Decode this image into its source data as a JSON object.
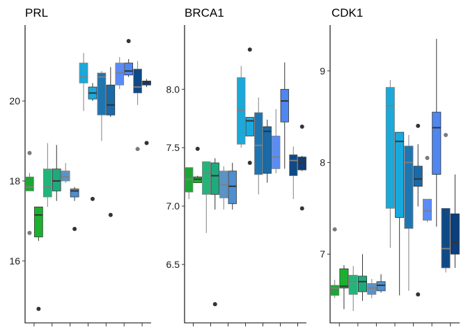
{
  "chart_data": [
    {
      "type": "box",
      "title": "PRL",
      "ylim": [
        14.45,
        21.9
      ],
      "yticks": [
        16,
        18,
        20
      ],
      "ytick_labels": [
        "16",
        "18",
        "20"
      ],
      "boxes": [
        {
          "q1": 17.75,
          "median": 17.85,
          "q3": 18.1,
          "whisker_low": 17.75,
          "whisker_high": 18.2,
          "outliers": [
            18.7,
            16.7
          ],
          "fill": "#1aa832",
          "median_color": "#7f7f7f"
        },
        {
          "q1": 16.6,
          "median": 17.15,
          "q3": 17.35,
          "whisker_low": 16.5,
          "whisker_high": 17.35,
          "outliers": [
            14.8
          ],
          "fill": "#1bb12f",
          "median_color": "#333333"
        },
        {
          "q1": 17.6,
          "median": 17.85,
          "q3": 18.3,
          "whisker_low": 17.35,
          "whisker_high": 18.95,
          "outliers": [],
          "fill": "#22b57a",
          "median_color": "#7f7f7f"
        },
        {
          "q1": 17.75,
          "median": 18.0,
          "q3": 18.3,
          "whisker_low": 17.5,
          "whisker_high": 18.9,
          "outliers": [],
          "fill": "#1fa97e",
          "median_color": "#333333"
        },
        {
          "q1": 18.0,
          "median": 18.1,
          "q3": 18.25,
          "whisker_low": 17.95,
          "whisker_high": 18.45,
          "outliers": [],
          "fill": "#5a94c6",
          "median_color": "#7f7f7f"
        },
        {
          "q1": 17.6,
          "median": 17.75,
          "q3": 17.8,
          "whisker_low": 17.5,
          "whisker_high": 17.85,
          "outliers": [
            16.8
          ],
          "fill": "#4d8fd0",
          "median_color": "#333333"
        },
        {
          "q1": 20.45,
          "median": 20.6,
          "q3": 20.95,
          "whisker_low": 19.75,
          "whisker_high": 21.2,
          "outliers": [],
          "fill": "#1aa9d9",
          "median_color": "#7f7f7f"
        },
        {
          "q1": 20.05,
          "median": 20.2,
          "q3": 20.35,
          "whisker_low": 20.0,
          "whisker_high": 20.45,
          "outliers": [
            17.55
          ],
          "fill": "#18aadf",
          "median_color": "#333333"
        },
        {
          "q1": 19.65,
          "median": 20.6,
          "q3": 20.7,
          "whisker_low": 19.0,
          "whisker_high": 20.75,
          "outliers": [],
          "fill": "#1f75b0",
          "median_color": "#7f7f7f"
        },
        {
          "q1": 19.65,
          "median": 19.9,
          "q3": 20.4,
          "whisker_low": 19.6,
          "whisker_high": 20.85,
          "outliers": [
            17.15
          ],
          "fill": "#1a6aa8",
          "median_color": "#333333"
        },
        {
          "q1": 20.4,
          "median": 20.7,
          "q3": 20.95,
          "whisker_low": 20.3,
          "whisker_high": 21.1,
          "outliers": [],
          "fill": "#5a8cf5",
          "median_color": "#7f7f7f"
        },
        {
          "q1": 20.65,
          "median": 20.75,
          "q3": 20.95,
          "whisker_low": 20.6,
          "whisker_high": 21.05,
          "outliers": [
            21.5
          ],
          "fill": "#4f86f0",
          "median_color": "#333333"
        },
        {
          "q1": 20.2,
          "median": 20.35,
          "q3": 20.8,
          "whisker_low": 19.9,
          "whisker_high": 21.0,
          "outliers": [
            18.8
          ],
          "fill": "#0f4a87",
          "median_color": "#7f7f7f"
        },
        {
          "q1": 20.4,
          "median": 20.45,
          "q3": 20.5,
          "whisker_low": 20.35,
          "whisker_high": 20.55,
          "outliers": [
            18.95
          ],
          "fill": "#0b3f7d",
          "median_color": "#333333"
        }
      ]
    },
    {
      "type": "box",
      "title": "BRCA1",
      "ylim": [
        6.0,
        8.55
      ],
      "yticks": [
        6.5,
        7.0,
        7.5,
        8.0
      ],
      "ytick_labels": [
        "6.5",
        "7.0",
        "7.5",
        "8.0"
      ],
      "boxes": [
        {
          "q1": 7.12,
          "median": 7.23,
          "q3": 7.33,
          "whisker_low": 7.06,
          "whisker_high": 7.33,
          "outliers": [],
          "fill": "#1aa832",
          "median_color": "#7f7f7f"
        },
        {
          "q1": 7.2,
          "median": 7.23,
          "q3": 7.25,
          "whisker_low": 7.2,
          "whisker_high": 7.26,
          "outliers": [
            7.49
          ],
          "fill": "#1bb12f",
          "median_color": "#333333"
        },
        {
          "q1": 7.1,
          "median": 7.28,
          "q3": 7.38,
          "whisker_low": 6.77,
          "whisker_high": 7.38,
          "outliers": [],
          "fill": "#22b57a",
          "median_color": "#7f7f7f"
        },
        {
          "q1": 7.1,
          "median": 7.26,
          "q3": 7.37,
          "whisker_low": 6.97,
          "whisker_high": 7.41,
          "outliers": [
            6.16
          ],
          "fill": "#1fa97e",
          "median_color": "#333333"
        },
        {
          "q1": 7.07,
          "median": 7.18,
          "q3": 7.3,
          "whisker_low": 6.97,
          "whisker_high": 7.34,
          "outliers": [],
          "fill": "#5a94c6",
          "median_color": "#7f7f7f"
        },
        {
          "q1": 7.02,
          "median": 7.17,
          "q3": 7.3,
          "whisker_low": 6.97,
          "whisker_high": 7.37,
          "outliers": [],
          "fill": "#4d8fd0",
          "median_color": "#333333"
        },
        {
          "q1": 7.53,
          "median": 7.82,
          "q3": 8.1,
          "whisker_low": 7.5,
          "whisker_high": 8.2,
          "outliers": [],
          "fill": "#1aa9d9",
          "median_color": "#7f7f7f"
        },
        {
          "q1": 7.6,
          "median": 7.73,
          "q3": 7.76,
          "whisker_low": 7.6,
          "whisker_high": 7.76,
          "outliers": [
            8.34,
            7.37
          ],
          "fill": "#18aadf",
          "median_color": "#333333"
        },
        {
          "q1": 7.27,
          "median": 7.52,
          "q3": 7.8,
          "whisker_low": 7.1,
          "whisker_high": 7.93,
          "outliers": [],
          "fill": "#1f75b0",
          "median_color": "#7f7f7f"
        },
        {
          "q1": 7.28,
          "median": 7.64,
          "q3": 7.68,
          "whisker_low": 7.2,
          "whisker_high": 7.74,
          "outliers": [],
          "fill": "#1a6aa8",
          "median_color": "#333333"
        },
        {
          "q1": 7.32,
          "median": 7.42,
          "q3": 7.6,
          "whisker_low": 7.28,
          "whisker_high": 7.83,
          "outliers": [],
          "fill": "#5a8cf5",
          "median_color": "#7f7f7f"
        },
        {
          "q1": 7.72,
          "median": 7.9,
          "q3": 8.0,
          "whisker_low": 7.32,
          "whisker_high": 8.23,
          "outliers": [],
          "fill": "#4f86f0",
          "median_color": "#333333"
        },
        {
          "q1": 7.26,
          "median": 7.39,
          "q3": 7.44,
          "whisker_low": 7.06,
          "whisker_high": 7.51,
          "outliers": [],
          "fill": "#0f4a87",
          "median_color": "#7f7f7f"
        },
        {
          "q1": 7.31,
          "median": 7.37,
          "q3": 7.42,
          "whisker_low": 7.3,
          "whisker_high": 7.43,
          "outliers": [
            7.68,
            6.98
          ],
          "fill": "#0b3f7d",
          "median_color": "#333333"
        }
      ]
    },
    {
      "type": "box",
      "title": "CDK1",
      "ylim": [
        6.25,
        9.5
      ],
      "yticks": [
        7,
        8,
        9
      ],
      "ytick_labels": [
        "7",
        "8",
        "9"
      ],
      "boxes": [
        {
          "q1": 6.55,
          "median": 6.63,
          "q3": 6.66,
          "whisker_low": 6.52,
          "whisker_high": 6.72,
          "outliers": [
            7.27
          ],
          "fill": "#1aa832",
          "median_color": "#7f7f7f"
        },
        {
          "q1": 6.63,
          "median": 6.65,
          "q3": 6.84,
          "whisker_low": 6.4,
          "whisker_high": 6.88,
          "outliers": [],
          "fill": "#1bb12f",
          "median_color": "#333333"
        },
        {
          "q1": 6.56,
          "median": 6.7,
          "q3": 6.77,
          "whisker_low": 6.38,
          "whisker_high": 6.87,
          "outliers": [],
          "fill": "#22b57a",
          "median_color": "#7f7f7f"
        },
        {
          "q1": 6.59,
          "median": 6.7,
          "q3": 6.76,
          "whisker_low": 6.49,
          "whisker_high": 7.0,
          "outliers": [],
          "fill": "#1fa97e",
          "median_color": "#333333"
        },
        {
          "q1": 6.56,
          "median": 6.63,
          "q3": 6.68,
          "whisker_low": 6.52,
          "whisker_high": 6.73,
          "outliers": [],
          "fill": "#5a94c6",
          "median_color": "#7f7f7f"
        },
        {
          "q1": 6.6,
          "median": 6.66,
          "q3": 6.7,
          "whisker_low": 6.58,
          "whisker_high": 6.78,
          "outliers": [],
          "fill": "#4d8fd0",
          "median_color": "#333333"
        },
        {
          "q1": 7.5,
          "median": 8.62,
          "q3": 8.82,
          "whisker_low": 7.07,
          "whisker_high": 8.9,
          "outliers": [],
          "fill": "#1aa9d9",
          "median_color": "#7f7f7f"
        },
        {
          "q1": 7.4,
          "median": 8.23,
          "q3": 8.33,
          "whisker_low": 6.55,
          "whisker_high": 8.33,
          "outliers": [],
          "fill": "#18aadf",
          "median_color": "#333333"
        },
        {
          "q1": 7.28,
          "median": 8.0,
          "q3": 8.18,
          "whisker_low": 6.6,
          "whisker_high": 8.3,
          "outliers": [],
          "fill": "#1f75b0",
          "median_color": "#7f7f7f"
        },
        {
          "q1": 7.74,
          "median": 7.82,
          "q3": 7.96,
          "whisker_low": 7.52,
          "whisker_high": 8.2,
          "outliers": [
            8.4,
            6.56
          ],
          "fill": "#1a6aa8",
          "median_color": "#333333"
        },
        {
          "q1": 7.37,
          "median": 7.47,
          "q3": 7.6,
          "whisker_low": 7.35,
          "whisker_high": 7.6,
          "outliers": [
            8.05
          ],
          "fill": "#5a8cf5",
          "median_color": "#7f7f7f"
        },
        {
          "q1": 7.87,
          "median": 8.38,
          "q3": 8.55,
          "whisker_low": 7.3,
          "whisker_high": 9.35,
          "outliers": [],
          "fill": "#4f86f0",
          "median_color": "#333333"
        },
        {
          "q1": 6.85,
          "median": 7.06,
          "q3": 7.5,
          "whisker_low": 6.8,
          "whisker_high": 7.5,
          "outliers": [
            8.3
          ],
          "fill": "#0f4a87",
          "median_color": "#7f7f7f"
        },
        {
          "q1": 7.0,
          "median": 7.13,
          "q3": 7.44,
          "whisker_low": 6.85,
          "whisker_high": 7.87,
          "outliers": [],
          "fill": "#0b3f7d",
          "median_color": "#333333"
        }
      ]
    }
  ]
}
